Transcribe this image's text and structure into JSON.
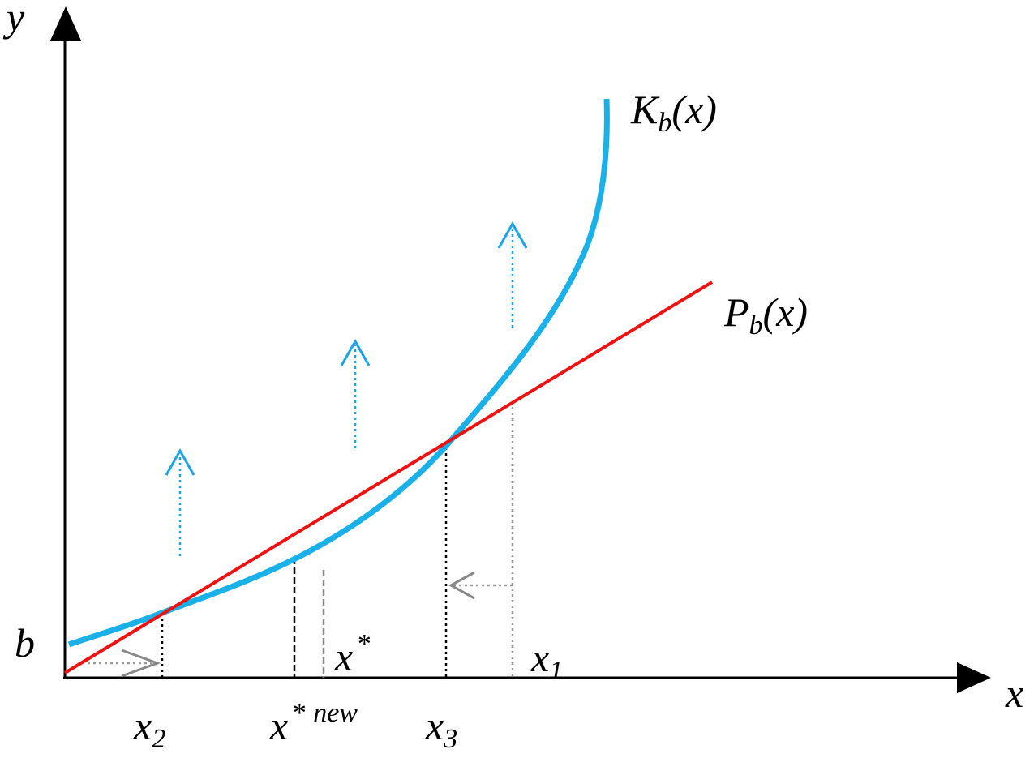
{
  "labels": {
    "y_axis": "y",
    "x_axis": "x",
    "b": "b",
    "curve_k": {
      "main": "K",
      "sub": "b",
      "rest": "(x)"
    },
    "line_p": {
      "main": "P",
      "sub": "b",
      "rest": "(x)"
    },
    "x_star": {
      "main": "x",
      "sup": "*"
    },
    "x1": {
      "main": "x",
      "sub": "1"
    },
    "x2": {
      "main": "x",
      "sub": "2"
    },
    "x_star_new": {
      "main": "x",
      "sup": "*",
      "sup2": "new"
    },
    "x3": {
      "main": "x",
      "sub": "3"
    }
  }
}
